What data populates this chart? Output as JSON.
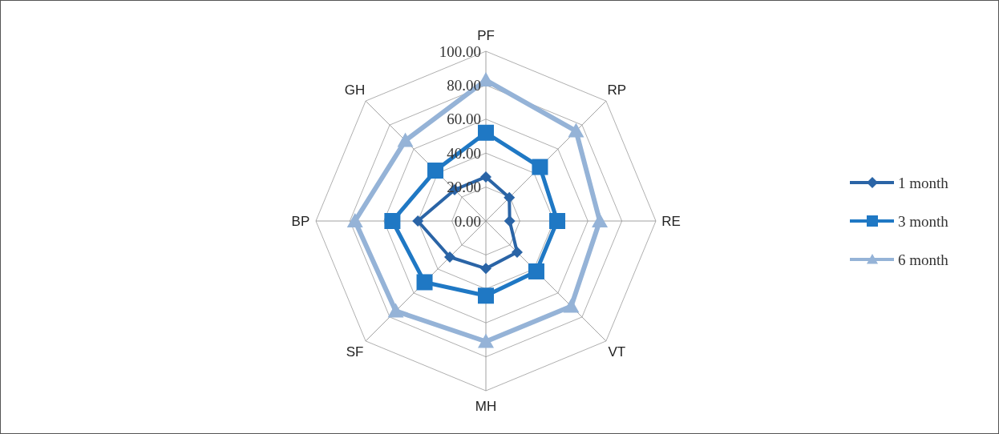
{
  "chart_data": {
    "type": "radar",
    "categories": [
      "PF",
      "RP",
      "RE",
      "VT",
      "MH",
      "SF",
      "BP",
      "GH"
    ],
    "series": [
      {
        "name": "1 month",
        "color": "#2a64a6",
        "marker": "diamond",
        "values": [
          26,
          19.5,
          14,
          26,
          28,
          30,
          40,
          26
        ]
      },
      {
        "name": "3 month",
        "color": "#1f78c4",
        "marker": "square",
        "values": [
          52,
          45,
          42,
          42,
          44,
          51,
          55,
          42
        ]
      },
      {
        "name": "6 month",
        "color": "#95b3d7",
        "marker": "triangle",
        "values": [
          83,
          75,
          67,
          71,
          71,
          75,
          77,
          67
        ]
      }
    ],
    "ylim": [
      0,
      100
    ],
    "yticks": [
      {
        "value": 0,
        "label": "0.00"
      },
      {
        "value": 20,
        "label": "20.00"
      },
      {
        "value": 40,
        "label": "40.00"
      },
      {
        "value": 60,
        "label": "60.00"
      },
      {
        "value": 80,
        "label": "80.00"
      },
      {
        "value": 100,
        "label": "100.00"
      }
    ],
    "grid": true,
    "legend": "right",
    "line_style": "solid"
  }
}
